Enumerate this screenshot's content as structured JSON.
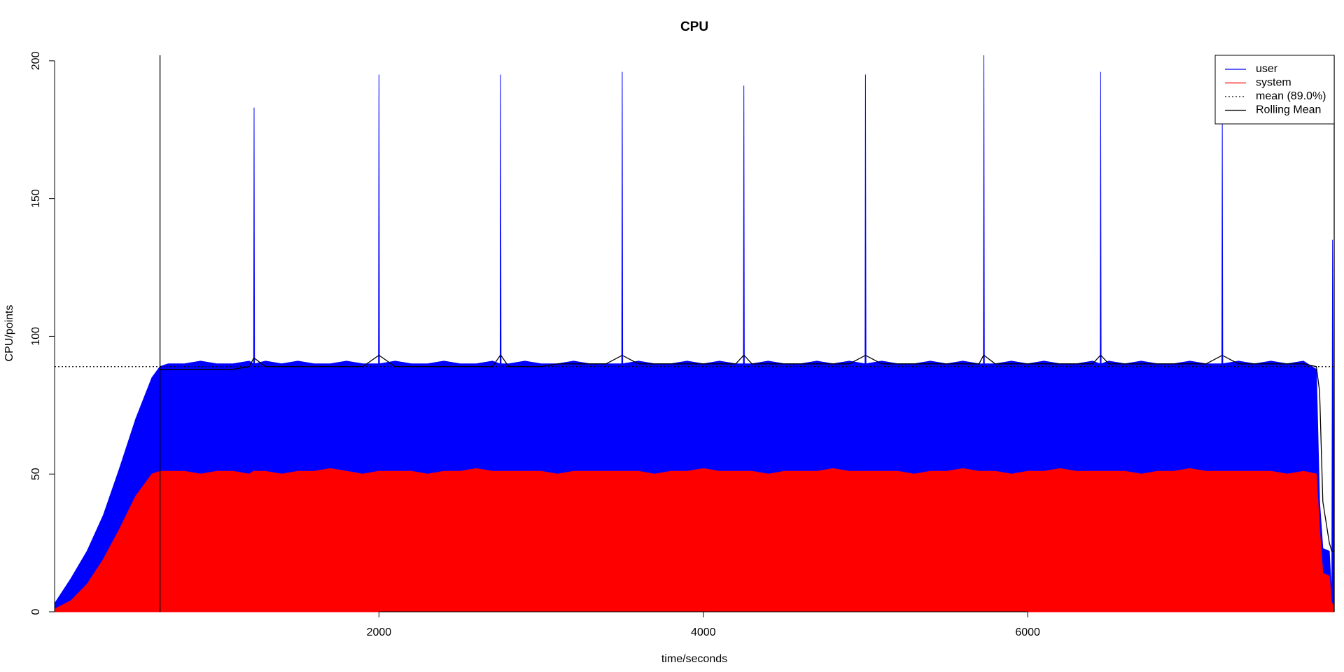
{
  "chart_data": {
    "type": "line",
    "title": "CPU",
    "x_label": "time/seconds",
    "y_label": "CPU/points",
    "x": [
      0,
      100,
      200,
      300,
      400,
      500,
      600,
      650,
      700,
      800,
      900,
      1000,
      1100,
      1200,
      1227,
      1230,
      1233,
      1300,
      1400,
      1500,
      1600,
      1700,
      1800,
      1900,
      1997,
      2000,
      2003,
      2100,
      2200,
      2300,
      2400,
      2500,
      2600,
      2700,
      2747,
      2750,
      2753,
      2800,
      2900,
      3000,
      3100,
      3200,
      3300,
      3400,
      3497,
      3500,
      3503,
      3600,
      3700,
      3800,
      3900,
      4000,
      4100,
      4200,
      4247,
      4250,
      4253,
      4300,
      4400,
      4500,
      4600,
      4700,
      4800,
      4900,
      4997,
      5000,
      5003,
      5100,
      5200,
      5300,
      5400,
      5500,
      5600,
      5700,
      5727,
      5730,
      5733,
      5800,
      5900,
      6000,
      6100,
      6200,
      6300,
      6400,
      6447,
      6450,
      6453,
      6500,
      6600,
      6700,
      6800,
      6900,
      7000,
      7100,
      7197,
      7200,
      7203,
      7300,
      7400,
      7500,
      7600,
      7700,
      7780,
      7800,
      7820,
      7860,
      7875,
      7880,
      7890
    ],
    "series": [
      {
        "name": "user",
        "color": "#0000ff",
        "values": [
          3,
          12,
          22,
          35,
          52,
          70,
          85,
          89,
          90,
          90,
          91,
          90,
          90,
          91,
          90,
          183,
          90,
          91,
          90,
          91,
          90,
          90,
          91,
          90,
          90,
          195,
          90,
          91,
          90,
          90,
          91,
          90,
          90,
          91,
          90,
          195,
          90,
          90,
          91,
          90,
          90,
          91,
          90,
          90,
          90,
          196,
          90,
          91,
          90,
          90,
          91,
          90,
          91,
          90,
          90,
          191,
          90,
          90,
          91,
          90,
          90,
          91,
          90,
          91,
          90,
          195,
          90,
          91,
          90,
          90,
          91,
          90,
          91,
          90,
          90,
          202,
          90,
          90,
          91,
          90,
          91,
          90,
          90,
          91,
          90,
          196,
          90,
          91,
          90,
          91,
          90,
          90,
          91,
          90,
          90,
          178,
          90,
          91,
          90,
          91,
          90,
          91,
          88,
          40,
          23,
          22,
          5,
          135,
          3
        ]
      },
      {
        "name": "system",
        "color": "#ff0000",
        "values": [
          1,
          4,
          10,
          19,
          30,
          42,
          50,
          51,
          51,
          51,
          50,
          51,
          51,
          50,
          51,
          51,
          51,
          51,
          50,
          51,
          51,
          52,
          51,
          50,
          51,
          51,
          51,
          51,
          51,
          50,
          51,
          51,
          52,
          51,
          51,
          51,
          51,
          51,
          51,
          51,
          50,
          51,
          51,
          51,
          51,
          51,
          51,
          51,
          50,
          51,
          51,
          52,
          51,
          51,
          51,
          51,
          51,
          51,
          50,
          51,
          51,
          51,
          52,
          51,
          51,
          51,
          51,
          51,
          51,
          50,
          51,
          51,
          52,
          51,
          51,
          51,
          51,
          51,
          50,
          51,
          51,
          52,
          51,
          51,
          51,
          51,
          51,
          51,
          51,
          50,
          51,
          51,
          52,
          51,
          51,
          51,
          51,
          51,
          51,
          51,
          50,
          51,
          50,
          30,
          14,
          13,
          3,
          3,
          1
        ]
      }
    ],
    "rolling": {
      "name": "Rolling Mean",
      "color": "#000000",
      "values": [
        null,
        null,
        null,
        null,
        null,
        null,
        null,
        88,
        88,
        88,
        88,
        88,
        88,
        89,
        92,
        92,
        92,
        89,
        89,
        89,
        89,
        89,
        89,
        89,
        93,
        93,
        93,
        89,
        89,
        89,
        89,
        89,
        89,
        89,
        93,
        93,
        93,
        89,
        89,
        89,
        90,
        90,
        90,
        90,
        93,
        93,
        93,
        90,
        90,
        90,
        90,
        90,
        90,
        90,
        93,
        93,
        93,
        90,
        90,
        90,
        90,
        90,
        90,
        90,
        93,
        93,
        93,
        90,
        90,
        90,
        90,
        90,
        90,
        90,
        93,
        93,
        93,
        90,
        90,
        90,
        90,
        90,
        90,
        90,
        93,
        93,
        93,
        90,
        90,
        90,
        90,
        90,
        90,
        90,
        93,
        93,
        93,
        90,
        90,
        90,
        90,
        90,
        89,
        80,
        40,
        25,
        22,
        22,
        22
      ]
    },
    "mean": {
      "label": "mean (89.0%)",
      "value": 89,
      "color": "#000000"
    },
    "vlines": [
      650
    ],
    "xlim": [
      0,
      7890
    ],
    "ylim": [
      0,
      202
    ],
    "xticks": [
      2000,
      4000,
      6000
    ],
    "yticks": [
      0,
      50,
      100,
      150,
      200
    ],
    "legend": "top-right"
  }
}
